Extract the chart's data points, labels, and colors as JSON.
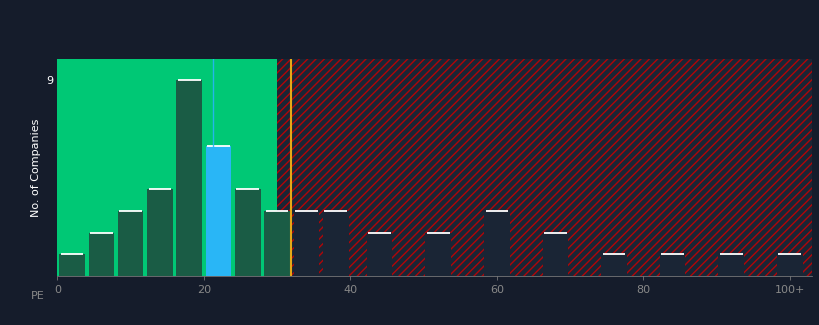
{
  "background_color": "#151c2b",
  "green_color": "#00c875",
  "dark_green_color": "#1a5c45",
  "blue_color": "#29b6f6",
  "hatch_color": "#cc0000",
  "dark_bar_color": "#1a2535",
  "orange_color": "#e6a817",
  "bar_positions": [
    2,
    6,
    10,
    14,
    18,
    22,
    26,
    30,
    34,
    38,
    44,
    52,
    60,
    68,
    76,
    84,
    92,
    100
  ],
  "bar_heights": [
    1,
    2,
    3,
    4,
    9,
    6,
    4,
    3,
    3,
    3,
    2,
    2,
    3,
    2,
    1,
    1,
    1,
    1
  ],
  "bar_width": 3.5,
  "simo_x": 21.3,
  "industry_avg_x": 31.9,
  "green_region_end": 30,
  "ylim": [
    0,
    10
  ],
  "xlim": [
    0,
    103
  ],
  "xticks": [
    0,
    20,
    40,
    60,
    80,
    100
  ],
  "xtick_labels": [
    "0",
    "20",
    "40",
    "60",
    "80",
    "100+"
  ],
  "ytick_val": 9,
  "ylabel": "No. of Companies",
  "tick_color": "#888888",
  "white": "#ffffff"
}
